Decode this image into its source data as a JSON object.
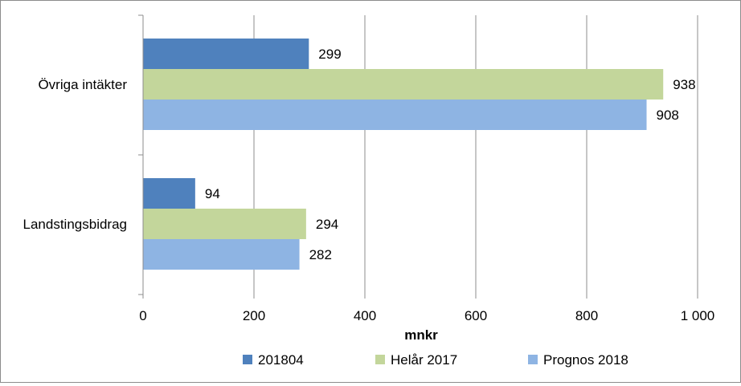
{
  "chart_data": {
    "type": "bar",
    "orientation": "horizontal",
    "categories": [
      "Övriga intäkter",
      "Landstingsbidrag"
    ],
    "series": [
      {
        "name": "201804",
        "color": "#4f81bd",
        "values": [
          299,
          94
        ]
      },
      {
        "name": "Helår 2017",
        "color": "#c3d69b",
        "values": [
          938,
          294
        ]
      },
      {
        "name": "Prognos 2018",
        "color": "#8eb4e3",
        "values": [
          908,
          282
        ]
      }
    ],
    "xlabel": "mnkr",
    "ylabel": "",
    "xlim": [
      0,
      1000
    ],
    "xticks": [
      0,
      200,
      400,
      600,
      800,
      1000
    ],
    "xtick_labels": [
      "0",
      "200",
      "400",
      "600",
      "800",
      "1 000"
    ],
    "grid": true,
    "legend_position": "bottom"
  }
}
